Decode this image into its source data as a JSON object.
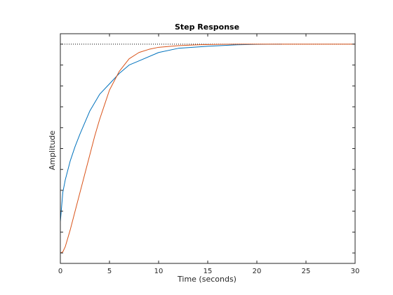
{
  "chart_data": {
    "type": "line",
    "title": "Step Response",
    "xlabel": "Time (seconds)",
    "ylabel": "Amplitude",
    "xlim": [
      0,
      30
    ],
    "ylim": [
      -0.05,
      1.05
    ],
    "x_ticks": [
      0,
      5,
      10,
      15,
      20,
      25,
      30
    ],
    "x_tick_labels": [
      "0",
      "5",
      "10",
      "15",
      "20",
      "25",
      "30"
    ],
    "y_ticks": [
      0,
      0.1,
      0.2,
      0.3,
      0.4,
      0.5,
      0.6,
      0.7,
      0.8,
      0.9,
      1.0
    ],
    "y_tick_labels_shown": false,
    "grid": false,
    "legend": "none",
    "steady_state_value": 1.0,
    "series": [
      {
        "color": "#0072BD",
        "x": [
          0,
          0.25,
          0.5,
          1,
          1.5,
          2,
          3,
          4,
          5,
          6,
          7,
          8,
          10,
          12,
          15,
          18,
          20,
          22.5
        ],
        "y": [
          0.15,
          0.29,
          0.35,
          0.44,
          0.51,
          0.57,
          0.68,
          0.76,
          0.81,
          0.86,
          0.9,
          0.92,
          0.96,
          0.98,
          0.99,
          0.997,
          0.999,
          1.0
        ]
      },
      {
        "color": "#D95319",
        "x": [
          0,
          0.25,
          0.5,
          1,
          1.5,
          2,
          2.5,
          3,
          3.5,
          4,
          4.5,
          5,
          6,
          7,
          8,
          9,
          10,
          12,
          14,
          16,
          18,
          20,
          25,
          30
        ],
        "y": [
          0.0,
          0.005,
          0.03,
          0.11,
          0.2,
          0.29,
          0.38,
          0.47,
          0.56,
          0.64,
          0.71,
          0.78,
          0.87,
          0.93,
          0.96,
          0.975,
          0.985,
          0.993,
          0.997,
          0.999,
          1.0,
          1.0,
          1.0,
          1.0
        ]
      }
    ]
  }
}
